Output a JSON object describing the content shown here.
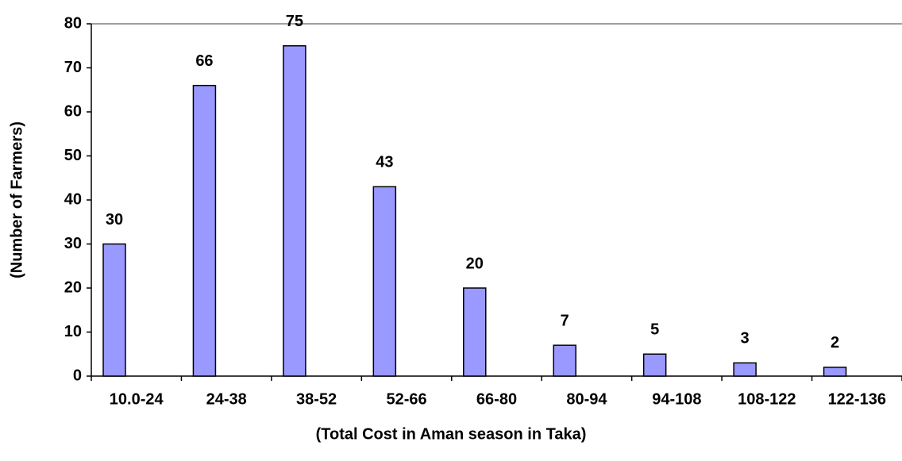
{
  "chart_data": {
    "type": "bar",
    "x_label": "(Total Cost in Aman season in Taka)",
    "y_label": "(Number of Farmers)",
    "categories": [
      "10.0-24",
      "24-38",
      "38-52",
      "52-66",
      "66-80",
      "80-94",
      "94-108",
      "108-122",
      "122-136"
    ],
    "values": [
      30,
      66,
      75,
      43,
      20,
      7,
      5,
      3,
      2
    ],
    "color": "#9999ff",
    "ylim": [
      0,
      80
    ],
    "yticks": [
      0,
      10,
      20,
      30,
      40,
      50,
      60,
      70,
      80
    ],
    "grid": false
  }
}
